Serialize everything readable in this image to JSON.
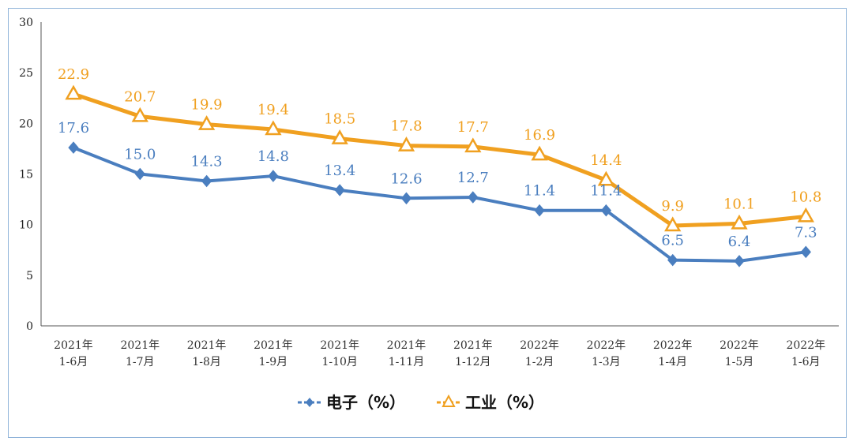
{
  "chart_data": {
    "type": "line",
    "categories": [
      [
        "2021年",
        "1-6月"
      ],
      [
        "2021年",
        "1-7月"
      ],
      [
        "2021年",
        "1-8月"
      ],
      [
        "2021年",
        "1-9月"
      ],
      [
        "2021年",
        "1-10月"
      ],
      [
        "2021年",
        "1-11月"
      ],
      [
        "2021年",
        "1-12月"
      ],
      [
        "2022年",
        "1-2月"
      ],
      [
        "2022年",
        "1-3月"
      ],
      [
        "2022年",
        "1-4月"
      ],
      [
        "2022年",
        "1-5月"
      ],
      [
        "2022年",
        "1-6月"
      ]
    ],
    "series": [
      {
        "name": "电子（%）",
        "color": "#4a7ebf",
        "marker": "diamond",
        "values": [
          17.6,
          15.0,
          14.3,
          14.8,
          13.4,
          12.6,
          12.7,
          11.4,
          11.4,
          6.5,
          6.4,
          7.3
        ],
        "labels": [
          "17.6",
          "15.0",
          "14.3",
          "14.8",
          "13.4",
          "12.6",
          "12.7",
          "11.4",
          "11.4",
          "6.5",
          "6.4",
          "7.3"
        ]
      },
      {
        "name": "工业（%）",
        "color": "#f0a020",
        "marker": "triangle",
        "values": [
          22.9,
          20.7,
          19.9,
          19.4,
          18.5,
          17.8,
          17.7,
          16.9,
          14.4,
          9.9,
          10.1,
          10.8
        ],
        "labels": [
          "22.9",
          "20.7",
          "19.9",
          "19.4",
          "18.5",
          "17.8",
          "17.7",
          "16.9",
          "14.4",
          "9.9",
          "10.1",
          "10.8"
        ]
      }
    ],
    "ylim": [
      0,
      30
    ],
    "yticks": [
      0,
      5,
      10,
      15,
      20,
      25,
      30
    ],
    "grid": false,
    "legend": "bottom"
  }
}
